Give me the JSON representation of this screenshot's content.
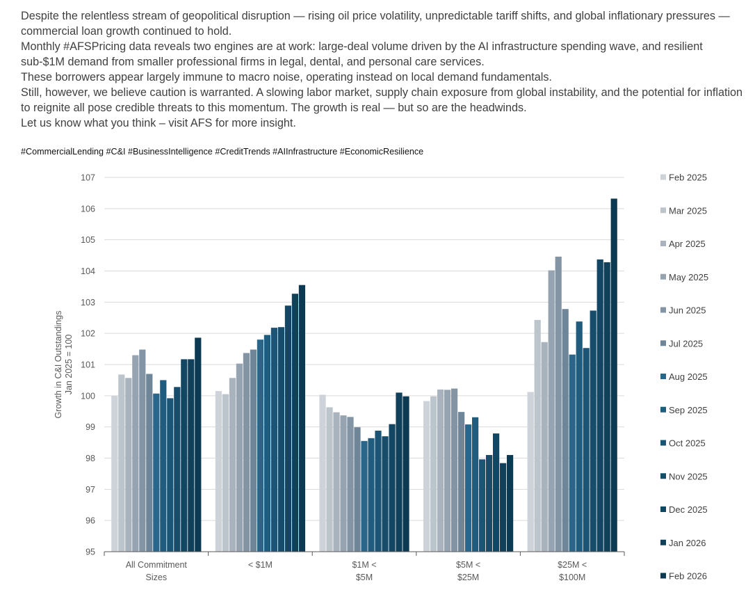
{
  "post": {
    "paragraphs": [
      "Despite the relentless stream of geopolitical disruption — rising oil price volatility, unpredictable tariff shifts, and global inflationary pressures — commercial loan growth continued to hold.",
      "Monthly #AFSPricing data reveals two engines are at work: large-deal volume driven by the AI infrastructure spending wave, and resilient sub-$1M demand from smaller professional firms in legal, dental, and personal care services.",
      "These borrowers appear largely immune to macro noise, operating instead on local demand fundamentals.",
      "Still, however, we believe caution is warranted. A slowing labor market, supply chain exposure from global instability, and the potential for inflation to reignite all pose credible threats to this momentum. The growth is real — but so are the headwinds.",
      "Let us know what you think – visit AFS for more insight."
    ],
    "hashtags": "#CommercialLending #C&I #BusinessIntelligence #CreditTrends #AIInfrastructure #EconomicResilience"
  },
  "chart_data": {
    "type": "bar",
    "title": "",
    "xlabel": "",
    "ylabel": "Growth in C&I Outstandings\nJan 2025 = 100",
    "ylim": [
      95,
      107
    ],
    "yticks": [
      95,
      96,
      97,
      98,
      99,
      100,
      101,
      102,
      103,
      104,
      105,
      106,
      107
    ],
    "grid": true,
    "legend_position": "right",
    "categories": [
      "All Commitment\nSizes",
      "< $1M",
      "$1M <\n$5M",
      "$5M <\n$25M",
      "$25M <\n$100M"
    ],
    "series": [
      {
        "name": "Feb 2025",
        "color": "#cdd3d9",
        "values": [
          100.0,
          100.15,
          100.03,
          99.83,
          100.12
        ]
      },
      {
        "name": "Mar 2025",
        "color": "#bcc4cc",
        "values": [
          100.68,
          100.05,
          99.63,
          99.98,
          102.43
        ]
      },
      {
        "name": "Apr 2025",
        "color": "#a9b3be",
        "values": [
          100.57,
          100.57,
          99.47,
          100.2,
          101.72
        ]
      },
      {
        "name": "May 2025",
        "color": "#96a4b2",
        "values": [
          101.3,
          101.03,
          99.37,
          100.19,
          104.02
        ]
      },
      {
        "name": "Jun 2025",
        "color": "#8394a5",
        "values": [
          101.48,
          101.37,
          99.32,
          100.23,
          104.46
        ]
      },
      {
        "name": "Jul 2025",
        "color": "#6f8598",
        "values": [
          100.7,
          101.48,
          98.99,
          99.48,
          102.78
        ]
      },
      {
        "name": "Aug 2025",
        "color": "#2a6689",
        "values": [
          100.07,
          101.8,
          98.55,
          99.08,
          101.32
        ]
      },
      {
        "name": "Sep 2025",
        "color": "#205c7e",
        "values": [
          100.5,
          101.95,
          98.64,
          99.31,
          102.38
        ]
      },
      {
        "name": "Oct 2025",
        "color": "#1b5474",
        "values": [
          99.92,
          102.18,
          98.88,
          97.96,
          101.53
        ]
      },
      {
        "name": "Nov 2025",
        "color": "#174d6a",
        "values": [
          100.28,
          102.2,
          98.7,
          98.1,
          102.73
        ]
      },
      {
        "name": "Dec 2025",
        "color": "#134662",
        "values": [
          101.17,
          102.89,
          99.09,
          98.79,
          104.37
        ]
      },
      {
        "name": "Jan 2026",
        "color": "#10405a",
        "values": [
          101.17,
          103.27,
          100.1,
          97.84,
          104.28
        ]
      },
      {
        "name": "Feb 2026",
        "color": "#0d3a53",
        "values": [
          101.86,
          103.55,
          99.98,
          98.1,
          106.32
        ]
      }
    ]
  }
}
